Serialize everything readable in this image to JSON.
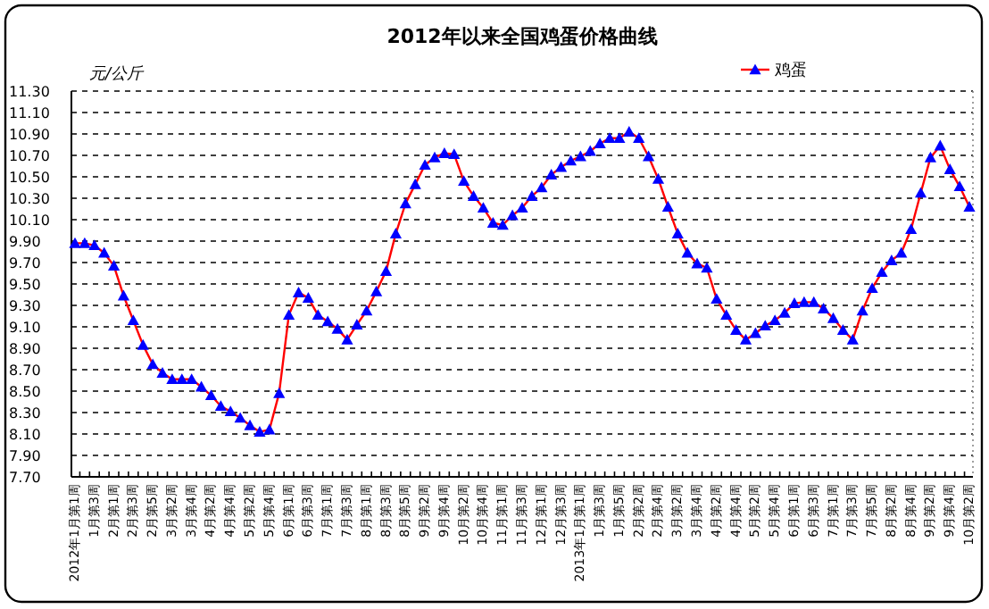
{
  "chart_data": {
    "type": "line",
    "title": "2012年以来全国鸡蛋价格曲线",
    "ylabel": "元/公斤",
    "categories": [
      "2012年1月第1周",
      null,
      "1月第3周",
      null,
      "2月第1周",
      null,
      "2月第3周",
      null,
      "2月第5周",
      null,
      "3月第2周",
      null,
      "3月第4周",
      null,
      "4月第2周",
      null,
      "4月第4周",
      null,
      "5月第2周",
      null,
      "5月第4周",
      null,
      "6月第1周",
      null,
      "6月第3周",
      null,
      "7月第1周",
      null,
      "7月第3周",
      null,
      "8月第1周",
      null,
      "8月第3周",
      null,
      "8月第5周",
      null,
      "9月第2周",
      null,
      "9月第4周",
      null,
      "10月第2周",
      null,
      "10月第4周",
      null,
      "11月第1周",
      null,
      "11月第3周",
      null,
      "12月第1周",
      null,
      "12月第3周",
      null,
      "2013年1月第1周",
      null,
      "1月第3周",
      null,
      "1月第5周",
      null,
      "2月第2周",
      null,
      "2月第4周",
      null,
      "3月第2周",
      null,
      "3月第4周",
      null,
      "4月第2周",
      null,
      "4月第4周",
      null,
      "5月第2周",
      null,
      "5月第4周",
      null,
      "6月第1周",
      null,
      "6月第3周",
      null,
      "7月第1周",
      null,
      "7月第3周",
      null,
      "7月第5周",
      null,
      "8月第2周",
      null,
      "8月第4周",
      null,
      "9月第2周",
      null,
      "9月第4周",
      null,
      "10月第2周"
    ],
    "series": [
      {
        "name": "鸡蛋",
        "color": "#ff0000",
        "colors": [
          "#0000ff",
          "#0000ff",
          "#0000ff",
          "#0000ff",
          "#0000ff",
          "#0000ff",
          "#0000ff",
          "#0000ff",
          "#0000ff",
          "#0000ff",
          "#0000ff",
          "#0000ff",
          "#0000ff",
          "#0000ff",
          "#0000ff",
          "#0000ff",
          "#0000ff",
          "#0000ff",
          "#0000ff",
          "#0000ff",
          "#0000ff",
          "#0000ff",
          "#0000ff",
          "#0000ff",
          "#0000ff",
          "#0000ff",
          "#0000ff",
          "#0000ff",
          "#0000ff",
          "#0000ff",
          "#0000ff",
          "#0000ff",
          "#0000ff",
          "#0000ff",
          "#0000ff",
          "#0000ff",
          "#0000ff",
          "#0000ff",
          "#0000ff",
          "#0000ff",
          "#0000ff",
          "#0000ff",
          "#0000ff",
          "#0000ff",
          "#0000ff",
          "#0000ff",
          "#0000ff",
          "#0000ff",
          "#0000ff",
          "#0000ff",
          "#0000ff",
          "#0000ff",
          "#0000ff",
          "#0000ff",
          "#0000ff",
          "#0000ff",
          "#0000ff",
          "#0000ff",
          "#0000ff",
          "#0000ff",
          "#0000ff",
          "#0000ff",
          "#0000ff",
          "#0000ff",
          "#0000ff",
          "#0000ff",
          "#0000ff",
          "#0000ff",
          "#0000ff",
          "#0000ff",
          "#0000ff",
          "#0000ff",
          "#0000ff",
          "#0000ff",
          "#0000ff",
          "#0000ff",
          "#0000ff",
          "#0000ff",
          "#0000ff",
          "#0000ff",
          "#0000ff",
          "#0000ff",
          "#0000ff",
          "#0000ff",
          "#0000ff",
          "#0000ff",
          "#0000ff",
          "#0000ff",
          "#0000ff",
          "#0000ff",
          "#0000ff",
          "#0000ff",
          "#0000ff"
        ],
        "values": [
          9.88,
          9.88,
          9.86,
          9.79,
          9.67,
          9.39,
          9.16,
          8.93,
          8.75,
          8.67,
          8.61,
          8.61,
          8.61,
          8.54,
          8.46,
          8.36,
          8.31,
          8.25,
          8.18,
          8.12,
          8.14,
          8.48,
          9.21,
          9.42,
          9.37,
          9.21,
          9.15,
          9.08,
          8.98,
          9.12,
          9.25,
          9.43,
          9.62,
          9.97,
          10.25,
          10.43,
          10.61,
          10.68,
          10.72,
          10.71,
          10.46,
          10.32,
          10.21,
          10.07,
          10.05,
          10.14,
          10.21,
          10.32,
          10.4,
          10.52,
          10.59,
          10.65,
          10.69,
          10.74,
          10.81,
          10.86,
          10.86,
          10.92,
          10.86,
          10.69,
          10.48,
          10.22,
          9.97,
          9.79,
          9.69,
          9.65,
          9.36,
          9.21,
          9.07,
          8.98,
          9.04,
          9.11,
          9.16,
          9.23,
          9.32,
          9.33,
          9.33,
          9.27,
          9.18,
          9.07,
          8.98,
          9.25,
          9.46,
          9.61,
          9.72,
          9.79,
          10.01,
          10.35,
          10.68,
          10.79,
          10.57,
          10.41,
          10.22
        ]
      }
    ],
    "ylim": [
      7.7,
      11.3
    ],
    "yticks": [
      {
        "value": 7.7,
        "label": "7.70"
      },
      {
        "value": 7.9,
        "label": "7.90"
      },
      {
        "value": 8.1,
        "label": "8.10"
      },
      {
        "value": 8.3,
        "label": "8.30"
      },
      {
        "value": 8.5,
        "label": "8.50"
      },
      {
        "value": 8.7,
        "label": "8.70"
      },
      {
        "value": 8.9,
        "label": "8.90"
      },
      {
        "value": 9.1,
        "label": "9.10"
      },
      {
        "value": 9.3,
        "label": "9.30"
      },
      {
        "value": 9.5,
        "label": "9.50"
      },
      {
        "value": 9.7,
        "label": "9.70"
      },
      {
        "value": 9.9,
        "label": "9.90"
      },
      {
        "value": 10.1,
        "label": "10.10"
      },
      {
        "value": 10.3,
        "label": "10.30"
      },
      {
        "value": 10.5,
        "label": "10.50"
      },
      {
        "value": 10.7,
        "label": "10.70"
      },
      {
        "value": 10.9,
        "label": "10.90"
      },
      {
        "value": 11.1,
        "label": "11.10"
      },
      {
        "value": 11.3,
        "label": "11.30"
      }
    ],
    "grid": "y",
    "legend": "top right",
    "marker": "triangle",
    "line_style": "solid"
  }
}
